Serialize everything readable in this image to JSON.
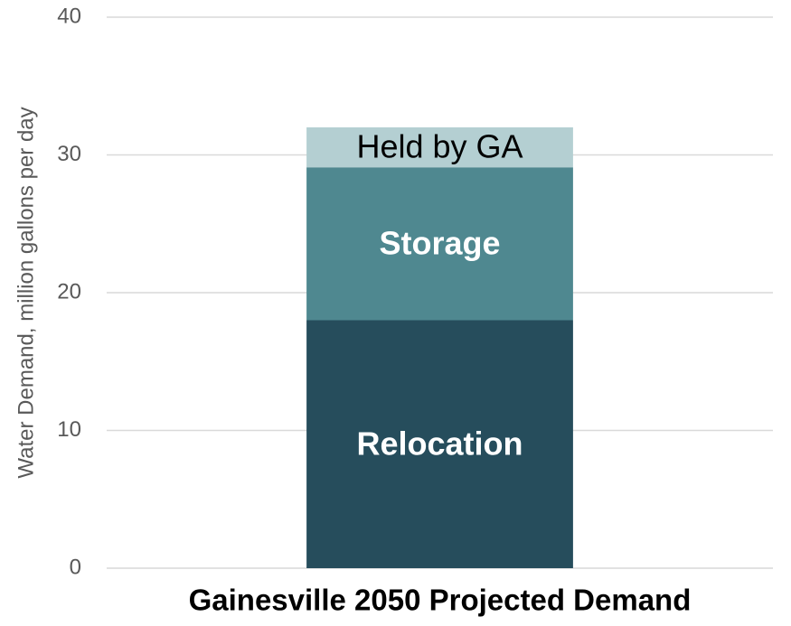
{
  "chart_data": {
    "type": "stacked_bar",
    "y_label": "Water Demand, million gallons per day",
    "categories": [
      "Gainesville 2050 Projected Demand"
    ],
    "series": [
      {
        "name": "Relocation",
        "color": "#264d5c",
        "label_color": "#ffffff",
        "values": [
          18
        ]
      },
      {
        "name": "Storage",
        "color": "#4f8890",
        "label_color": "#ffffff",
        "values": [
          11.1
        ]
      },
      {
        "name": "Held by GA",
        "color": "#b4cfd2",
        "label_color": "#000000",
        "values": [
          2.9
        ]
      }
    ],
    "ylim": [
      0,
      40
    ],
    "yticks": [
      0,
      10,
      20,
      30,
      40
    ],
    "grid": true
  }
}
